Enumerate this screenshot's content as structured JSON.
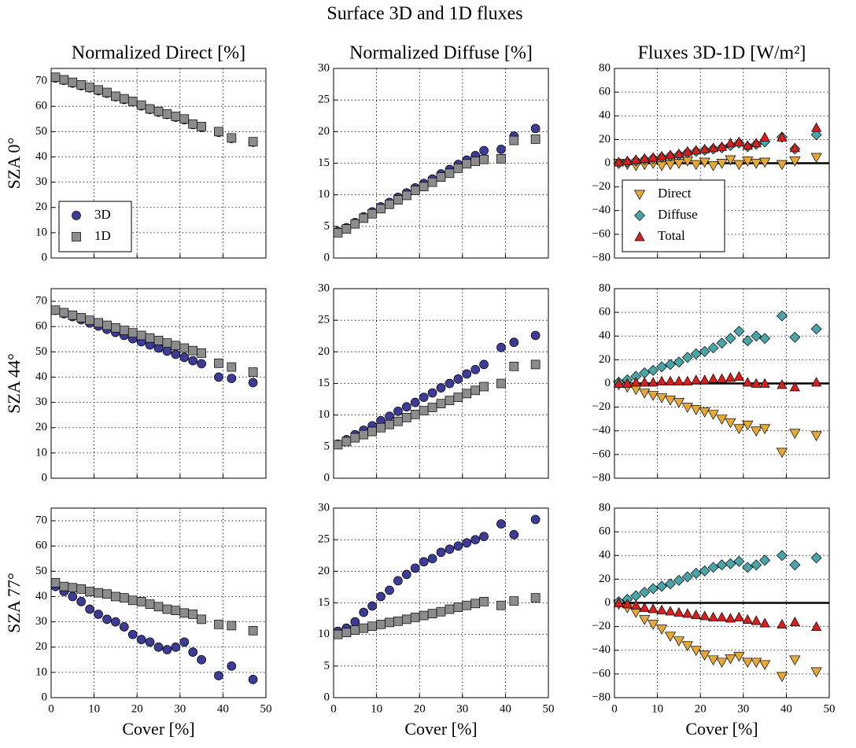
{
  "title": "Surface 3D and 1D fluxes",
  "chart_data": [
    {
      "type": "scatter",
      "title": "Normalized Direct [%]",
      "ylabel": "SZA 0°",
      "xlim": [
        0,
        50
      ],
      "xticks": [
        0,
        10,
        20,
        30,
        40,
        50
      ],
      "ylim": [
        0,
        75
      ],
      "yticks": [
        0,
        10,
        20,
        30,
        40,
        50,
        60,
        70
      ],
      "grid": true,
      "legend": "lower left",
      "x": [
        1,
        3,
        5,
        7,
        9,
        11,
        13,
        15,
        17,
        19,
        21,
        23,
        25,
        27,
        29,
        31,
        33,
        35,
        39,
        42,
        47
      ],
      "series": [
        {
          "name": "3D",
          "color": "#3c3c96",
          "marker": "circle",
          "values": [
            71.2,
            70.3,
            69.2,
            68.2,
            67.3,
            66.2,
            65.2,
            63.8,
            62.7,
            61.8,
            60.2,
            58.8,
            57.7,
            56.8,
            55.7,
            54.7,
            52.8,
            51.7,
            49.7,
            47.3,
            45.8
          ]
        },
        {
          "name": "1D",
          "color": "#8c8c8c",
          "marker": "square",
          "values": [
            71.5,
            70.5,
            69.5,
            68.5,
            67.5,
            66.5,
            65.5,
            64,
            63,
            62,
            60.5,
            59,
            58,
            57,
            56,
            55,
            53,
            52,
            50,
            47.5,
            46
          ]
        }
      ]
    },
    {
      "type": "scatter",
      "title": "Normalized Diffuse [%]",
      "xlim": [
        0,
        50
      ],
      "xticks": [
        0,
        10,
        20,
        30,
        40,
        50
      ],
      "ylim": [
        0,
        30
      ],
      "yticks": [
        0,
        5,
        10,
        15,
        20,
        25,
        30
      ],
      "grid": true,
      "x": [
        1,
        3,
        5,
        7,
        9,
        11,
        13,
        15,
        17,
        19,
        21,
        23,
        25,
        27,
        29,
        31,
        33,
        35,
        39,
        42,
        47
      ],
      "series": [
        {
          "name": "3D",
          "color": "#3c3c96",
          "marker": "circle",
          "values": [
            4.2,
            4.8,
            5.6,
            6.5,
            7.3,
            8.1,
            8.8,
            9.6,
            10.3,
            11.1,
            11.8,
            12.5,
            13.3,
            14,
            14.8,
            15.5,
            16.2,
            17,
            17.2,
            19.3,
            20.5
          ]
        },
        {
          "name": "1D",
          "color": "#8c8c8c",
          "marker": "square",
          "values": [
            4,
            4.6,
            5.4,
            6.3,
            7,
            7.8,
            8.5,
            9.2,
            9.9,
            10.7,
            11.3,
            12,
            12.8,
            13.4,
            14.2,
            14.9,
            15.3,
            15.6,
            15.7,
            18.6,
            18.8
          ]
        }
      ]
    },
    {
      "type": "scatter",
      "title": "Fluxes 3D-1D [W/m²]",
      "xlim": [
        0,
        50
      ],
      "xticks": [
        0,
        10,
        20,
        30,
        40,
        50
      ],
      "ylim": [
        -80,
        80
      ],
      "yticks": [
        {
          "value": -80,
          "label": "−80"
        },
        {
          "value": -60,
          "label": "−60"
        },
        {
          "value": -40,
          "label": "−40"
        },
        {
          "value": -20,
          "label": "−20"
        },
        0,
        20,
        40,
        60,
        80
      ],
      "grid": true,
      "zero_line": true,
      "legend": "lower left",
      "x": [
        1,
        3,
        5,
        7,
        9,
        11,
        13,
        15,
        17,
        19,
        21,
        23,
        25,
        27,
        29,
        31,
        33,
        35,
        39,
        42,
        47
      ],
      "series": [
        {
          "name": "Direct",
          "color": "#e8a838",
          "marker": "triangle-down",
          "values": [
            0,
            -1,
            -2,
            -1,
            0,
            -2,
            -1,
            0,
            2,
            -1,
            1,
            -2,
            0,
            3,
            -1,
            2,
            0,
            1,
            -1,
            2,
            5
          ]
        },
        {
          "name": "Diffuse",
          "color": "#4aa5a8",
          "marker": "diamond",
          "values": [
            0,
            1,
            2,
            3,
            4,
            5,
            6,
            7,
            9,
            10,
            11,
            12,
            13,
            15,
            17,
            14,
            16,
            18,
            22,
            12,
            24
          ]
        },
        {
          "name": "Total",
          "color": "#d62020",
          "marker": "triangle-up",
          "values": [
            1,
            2,
            3,
            4,
            5,
            6,
            7,
            8,
            10,
            11,
            12,
            13,
            14,
            17,
            18,
            15,
            17,
            22,
            22,
            13,
            30
          ]
        }
      ]
    },
    {
      "type": "scatter",
      "ylabel": "SZA 44°",
      "xlim": [
        0,
        50
      ],
      "xticks": [
        0,
        10,
        20,
        30,
        40,
        50
      ],
      "ylim": [
        0,
        75
      ],
      "yticks": [
        0,
        10,
        20,
        30,
        40,
        50,
        60,
        70
      ],
      "grid": true,
      "x": [
        1,
        3,
        5,
        7,
        9,
        11,
        13,
        15,
        17,
        19,
        21,
        23,
        25,
        27,
        29,
        31,
        33,
        35,
        39,
        42,
        47
      ],
      "series": [
        {
          "name": "3D",
          "color": "#3c3c96",
          "marker": "circle",
          "values": [
            66.4,
            65.1,
            63.9,
            62.7,
            61.4,
            60.2,
            58.9,
            57.7,
            56.5,
            55.2,
            54,
            52.7,
            51.5,
            50.3,
            49,
            47.8,
            46.5,
            45.3,
            40,
            39.5,
            37.8
          ]
        },
        {
          "name": "1D",
          "color": "#8c8c8c",
          "marker": "square",
          "values": [
            66.5,
            65.5,
            64.5,
            63.5,
            62.5,
            61.5,
            60.5,
            59.5,
            58.5,
            57.5,
            56.5,
            55.5,
            54.5,
            53.5,
            52.5,
            51.5,
            50.5,
            49.5,
            45.5,
            44,
            42
          ]
        }
      ]
    },
    {
      "type": "scatter",
      "xlim": [
        0,
        50
      ],
      "xticks": [
        0,
        10,
        20,
        30,
        40,
        50
      ],
      "ylim": [
        0,
        30
      ],
      "yticks": [
        0,
        5,
        10,
        15,
        20,
        25,
        30
      ],
      "grid": true,
      "x": [
        1,
        3,
        5,
        7,
        9,
        11,
        13,
        15,
        17,
        19,
        21,
        23,
        25,
        27,
        29,
        31,
        33,
        35,
        39,
        42,
        47
      ],
      "series": [
        {
          "name": "3D",
          "color": "#3c3c96",
          "marker": "circle",
          "values": [
            5.4,
            6.1,
            6.9,
            7.6,
            8.3,
            9.1,
            9.8,
            10.6,
            11.3,
            12,
            12.8,
            13.5,
            14.3,
            15,
            15.7,
            16.5,
            17.2,
            18,
            20.7,
            21.5,
            22.6
          ]
        },
        {
          "name": "1D",
          "color": "#8c8c8c",
          "marker": "square",
          "values": [
            5.3,
            5.8,
            6.4,
            6.9,
            7.4,
            8,
            8.5,
            9,
            9.6,
            10.1,
            10.7,
            11.2,
            11.8,
            12.3,
            12.8,
            13.4,
            13.9,
            14.5,
            15,
            17.7,
            18
          ]
        }
      ]
    },
    {
      "type": "scatter",
      "xlim": [
        0,
        50
      ],
      "xticks": [
        0,
        10,
        20,
        30,
        40,
        50
      ],
      "ylim": [
        -80,
        80
      ],
      "yticks": [
        {
          "value": -80,
          "label": "−80"
        },
        {
          "value": -60,
          "label": "−60"
        },
        {
          "value": -40,
          "label": "−40"
        },
        {
          "value": -20,
          "label": "−20"
        },
        0,
        20,
        40,
        60,
        80
      ],
      "grid": true,
      "zero_line": true,
      "x": [
        1,
        3,
        5,
        7,
        9,
        11,
        13,
        15,
        17,
        19,
        21,
        23,
        25,
        27,
        29,
        31,
        33,
        35,
        39,
        42,
        47
      ],
      "series": [
        {
          "name": "Direct",
          "color": "#e8a838",
          "marker": "triangle-down",
          "values": [
            -1,
            -3,
            -5,
            -8,
            -10,
            -12,
            -14,
            -16,
            -20,
            -22,
            -24,
            -26,
            -30,
            -33,
            -38,
            -35,
            -40,
            -38,
            -58,
            -42,
            -44
          ]
        },
        {
          "name": "Diffuse",
          "color": "#4aa5a8",
          "marker": "diamond",
          "values": [
            1,
            3,
            6,
            9,
            11,
            14,
            16,
            18,
            22,
            25,
            27,
            30,
            34,
            38,
            44,
            36,
            40,
            38,
            57,
            39,
            46
          ]
        },
        {
          "name": "Total",
          "color": "#d62020",
          "marker": "triangle-up",
          "values": [
            0,
            0,
            1,
            1,
            1,
            2,
            2,
            2,
            2,
            3,
            3,
            4,
            4,
            5,
            6,
            1,
            0,
            0,
            -1,
            -3,
            1
          ]
        }
      ]
    },
    {
      "type": "scatter",
      "ylabel": "SZA 77°",
      "xlabel": "Cover [%]",
      "xlim": [
        0,
        50
      ],
      "xticks": [
        0,
        10,
        20,
        30,
        40,
        50
      ],
      "ylim": [
        0,
        75
      ],
      "yticks": [
        0,
        10,
        20,
        30,
        40,
        50,
        60,
        70
      ],
      "grid": true,
      "x": [
        1,
        3,
        5,
        7,
        9,
        11,
        13,
        15,
        17,
        19,
        21,
        23,
        25,
        27,
        29,
        31,
        33,
        35,
        39,
        42,
        47
      ],
      "series": [
        {
          "name": "3D",
          "color": "#3c3c96",
          "marker": "circle",
          "values": [
            44,
            42,
            40,
            38,
            35,
            33,
            31,
            30,
            28,
            25,
            23,
            22,
            20,
            19,
            20,
            22,
            18,
            15,
            8.7,
            12.5,
            7.2
          ]
        },
        {
          "name": "1D",
          "color": "#8c8c8c",
          "marker": "square",
          "values": [
            45.5,
            44,
            43.5,
            43,
            42,
            41.5,
            41,
            40,
            39.5,
            38.5,
            38,
            37,
            36,
            35,
            34.5,
            33.5,
            33,
            31,
            29,
            28.5,
            26.5
          ]
        }
      ]
    },
    {
      "type": "scatter",
      "xlabel": "Cover [%]",
      "xlim": [
        0,
        50
      ],
      "xticks": [
        0,
        10,
        20,
        30,
        40,
        50
      ],
      "ylim": [
        0,
        30
      ],
      "yticks": [
        0,
        5,
        10,
        15,
        20,
        25,
        30
      ],
      "grid": true,
      "x": [
        1,
        3,
        5,
        7,
        9,
        11,
        13,
        15,
        17,
        19,
        21,
        23,
        25,
        27,
        29,
        31,
        33,
        35,
        39,
        42,
        47
      ],
      "series": [
        {
          "name": "3D",
          "color": "#3c3c96",
          "marker": "circle",
          "values": [
            10.5,
            11,
            12,
            13.5,
            14.5,
            16,
            17,
            18.5,
            19.5,
            20.5,
            21.5,
            22,
            23,
            23.5,
            24,
            24.5,
            25,
            25.5,
            27.5,
            25.8,
            28.2
          ]
        },
        {
          "name": "1D",
          "color": "#8c8c8c",
          "marker": "square",
          "values": [
            10,
            10.3,
            10.7,
            11,
            11.3,
            11.6,
            11.9,
            12.1,
            12.4,
            12.7,
            13,
            13.3,
            13.6,
            14,
            14.3,
            14.6,
            14.9,
            15.2,
            14.6,
            15.3,
            15.8
          ]
        }
      ]
    },
    {
      "type": "scatter",
      "xlabel": "Cover [%]",
      "xlim": [
        0,
        50
      ],
      "xticks": [
        0,
        10,
        20,
        30,
        40,
        50
      ],
      "ylim": [
        -80,
        80
      ],
      "yticks": [
        {
          "value": -80,
          "label": "−80"
        },
        {
          "value": -60,
          "label": "−60"
        },
        {
          "value": -40,
          "label": "−40"
        },
        {
          "value": -20,
          "label": "−20"
        },
        0,
        20,
        40,
        60,
        80
      ],
      "grid": true,
      "zero_line": true,
      "x": [
        1,
        3,
        5,
        7,
        9,
        11,
        13,
        15,
        17,
        19,
        21,
        23,
        25,
        27,
        29,
        31,
        33,
        35,
        39,
        42,
        47
      ],
      "series": [
        {
          "name": "Direct",
          "color": "#e8a838",
          "marker": "triangle-down",
          "values": [
            -1,
            -4,
            -8,
            -14,
            -18,
            -22,
            -28,
            -32,
            -36,
            -40,
            -44,
            -48,
            -50,
            -47,
            -45,
            -50,
            -50,
            -52,
            -62,
            -48,
            -58
          ]
        },
        {
          "name": "Diffuse",
          "color": "#4aa5a8",
          "marker": "diamond",
          "values": [
            1,
            3,
            6,
            9,
            12,
            14,
            16,
            19,
            22,
            25,
            27,
            30,
            32,
            33,
            35,
            30,
            32,
            36,
            40,
            32,
            38
          ]
        },
        {
          "name": "Total",
          "color": "#d62020",
          "marker": "triangle-up",
          "values": [
            0,
            -1,
            -2,
            -4,
            -5,
            -6,
            -7,
            -8,
            -9,
            -10,
            -11,
            -12,
            -12,
            -13,
            -12,
            -14,
            -15,
            -17,
            -18,
            -16,
            -20
          ]
        }
      ]
    }
  ]
}
